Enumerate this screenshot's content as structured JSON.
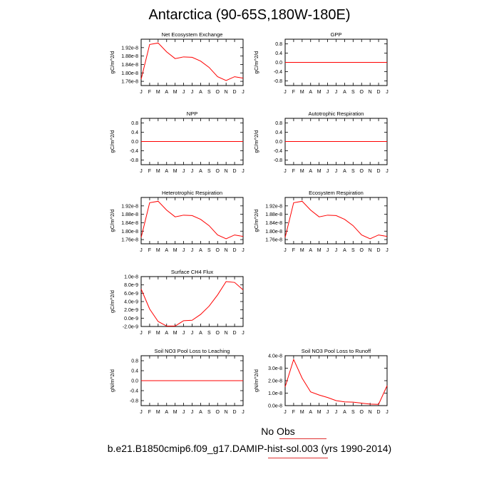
{
  "title": "Antarctica (90-65S,180W-180E)",
  "footer": {
    "obs_label": "No Obs",
    "case_label": "b.e21.B1850cmip6.f09_g17.DAMIP-hist-sol.003 (yrs 1990-2014)"
  },
  "colors": {
    "series": "#ff0000",
    "axis": "#000000",
    "legend_line": "#e03030"
  },
  "chart_data": [
    {
      "type": "line",
      "title": "Net Ecosystem Exchange",
      "ylabel": "gC/m^2/d",
      "x": [
        "J",
        "F",
        "M",
        "A",
        "M",
        "J",
        "J",
        "A",
        "S",
        "O",
        "N",
        "D",
        "J"
      ],
      "values": [
        1.77e-08,
        1.935e-08,
        1.942e-08,
        1.9e-08,
        1.868e-08,
        1.876e-08,
        1.874e-08,
        1.856e-08,
        1.826e-08,
        1.782e-08,
        1.764e-08,
        1.782e-08,
        1.775e-08
      ],
      "ylim": [
        1.74e-08,
        1.96e-08
      ],
      "yticks": [
        1.76e-08,
        1.8e-08,
        1.84e-08,
        1.88e-08,
        1.92e-08
      ],
      "ytick_labels": [
        "1.76e-8",
        "1.80e-8",
        "1.84e-8",
        "1.88e-8",
        "1.92e-8"
      ]
    },
    {
      "type": "line",
      "title": "GPP",
      "ylabel": "gC/m^2/d",
      "x": [
        "J",
        "F",
        "M",
        "A",
        "M",
        "J",
        "J",
        "A",
        "S",
        "O",
        "N",
        "D",
        "J"
      ],
      "values": [
        0,
        0,
        0,
        0,
        0,
        0,
        0,
        0,
        0,
        0,
        0,
        0,
        0
      ],
      "ylim": [
        -1.0,
        1.0
      ],
      "yticks": [
        -0.8,
        -0.4,
        0.0,
        0.4,
        0.8
      ],
      "ytick_labels": [
        "-0.8",
        "-0.4",
        "0.0",
        "0.4",
        "0.8"
      ]
    },
    {
      "type": "line",
      "title": "NPP",
      "ylabel": "gC/m^2/d",
      "x": [
        "J",
        "F",
        "M",
        "A",
        "M",
        "J",
        "J",
        "A",
        "S",
        "O",
        "N",
        "D",
        "J"
      ],
      "values": [
        0,
        0,
        0,
        0,
        0,
        0,
        0,
        0,
        0,
        0,
        0,
        0,
        0
      ],
      "ylim": [
        -1.0,
        1.0
      ],
      "yticks": [
        -0.8,
        -0.4,
        0.0,
        0.4,
        0.8
      ],
      "ytick_labels": [
        "-0.8",
        "-0.4",
        "0.0",
        "0.4",
        "0.8"
      ]
    },
    {
      "type": "line",
      "title": "Autotrophic Respiration",
      "ylabel": "gC/m^2/d",
      "x": [
        "J",
        "F",
        "M",
        "A",
        "M",
        "J",
        "J",
        "A",
        "S",
        "O",
        "N",
        "D",
        "J"
      ],
      "values": [
        0,
        0,
        0,
        0,
        0,
        0,
        0,
        0,
        0,
        0,
        0,
        0,
        0
      ],
      "ylim": [
        -1.0,
        1.0
      ],
      "yticks": [
        -0.8,
        -0.4,
        0.0,
        0.4,
        0.8
      ],
      "ytick_labels": [
        "-0.8",
        "-0.4",
        "0.0",
        "0.4",
        "0.8"
      ]
    },
    {
      "type": "line",
      "title": "Heterotrophic Respiration",
      "ylabel": "gC/m^2/d",
      "x": [
        "J",
        "F",
        "M",
        "A",
        "M",
        "J",
        "J",
        "A",
        "S",
        "O",
        "N",
        "D",
        "J"
      ],
      "values": [
        1.77e-08,
        1.935e-08,
        1.942e-08,
        1.9e-08,
        1.868e-08,
        1.876e-08,
        1.874e-08,
        1.856e-08,
        1.826e-08,
        1.782e-08,
        1.764e-08,
        1.782e-08,
        1.775e-08
      ],
      "ylim": [
        1.74e-08,
        1.96e-08
      ],
      "yticks": [
        1.76e-08,
        1.8e-08,
        1.84e-08,
        1.88e-08,
        1.92e-08
      ],
      "ytick_labels": [
        "1.76e-8",
        "1.80e-8",
        "1.84e-8",
        "1.88e-8",
        "1.92e-8"
      ]
    },
    {
      "type": "line",
      "title": "Ecosystem Respiration",
      "ylabel": "gC/m^2/d",
      "x": [
        "J",
        "F",
        "M",
        "A",
        "M",
        "J",
        "J",
        "A",
        "S",
        "O",
        "N",
        "D",
        "J"
      ],
      "values": [
        1.77e-08,
        1.935e-08,
        1.942e-08,
        1.9e-08,
        1.868e-08,
        1.876e-08,
        1.874e-08,
        1.856e-08,
        1.826e-08,
        1.782e-08,
        1.764e-08,
        1.782e-08,
        1.775e-08
      ],
      "ylim": [
        1.74e-08,
        1.96e-08
      ],
      "yticks": [
        1.76e-08,
        1.8e-08,
        1.84e-08,
        1.88e-08,
        1.92e-08
      ],
      "ytick_labels": [
        "1.76e-8",
        "1.80e-8",
        "1.84e-8",
        "1.88e-8",
        "1.92e-8"
      ]
    },
    {
      "type": "line",
      "title": "Surface CH4 Flux",
      "ylabel": "gC/m^2/d",
      "x": [
        "J",
        "F",
        "M",
        "A",
        "M",
        "J",
        "J",
        "A",
        "S",
        "O",
        "N",
        "D",
        "J"
      ],
      "values": [
        7e-09,
        2.2e-09,
        -8e-10,
        -1.9e-09,
        -1.9e-09,
        -6e-10,
        -5e-10,
        9e-10,
        2.9e-09,
        5.6e-09,
        8.8e-09,
        8.6e-09,
        6.8e-09
      ],
      "ylim": [
        -2e-09,
        1e-08
      ],
      "yticks": [
        -2e-09,
        0,
        2e-09,
        4e-09,
        6e-09,
        8e-09,
        1e-08
      ],
      "ytick_labels": [
        "-2.0e-9",
        "0.0e-9",
        "2.0e-9",
        "4.0e-9",
        "6.0e-9",
        "8.0e-9",
        "1.0e-8"
      ]
    },
    {
      "type": "line",
      "title": "Soil NO3 Pool Loss to Leaching",
      "ylabel": "gN/m^2/d",
      "x": [
        "J",
        "F",
        "M",
        "A",
        "M",
        "J",
        "J",
        "A",
        "S",
        "O",
        "N",
        "D",
        "J"
      ],
      "values": [
        0,
        0,
        0,
        0,
        0,
        0,
        0,
        0,
        0,
        0,
        0,
        0,
        0
      ],
      "ylim": [
        -1.0,
        1.0
      ],
      "yticks": [
        -0.8,
        -0.4,
        0.0,
        0.4,
        0.8
      ],
      "ytick_labels": [
        "-0.8",
        "-0.4",
        "0.0",
        "0.4",
        "0.8"
      ]
    },
    {
      "type": "line",
      "title": "Soil NO3 Pool Loss to Runoff",
      "ylabel": "gN/m^2/d",
      "x": [
        "J",
        "F",
        "M",
        "A",
        "M",
        "J",
        "J",
        "A",
        "S",
        "O",
        "N",
        "D",
        "J"
      ],
      "values": [
        1.5e-08,
        3.7e-08,
        2.2e-08,
        1.1e-08,
        8.5e-09,
        6.5e-09,
        4e-09,
        3e-09,
        2.8e-09,
        2e-09,
        1.2e-09,
        1e-09,
        1.6e-08
      ],
      "ylim": [
        0,
        4e-08
      ],
      "yticks": [
        0,
        1e-08,
        2e-08,
        3e-08,
        4e-08
      ],
      "ytick_labels": [
        "0.0e-8",
        "1.0e-8",
        "2.0e-8",
        "3.0e-8",
        "4.0e-8"
      ]
    }
  ]
}
